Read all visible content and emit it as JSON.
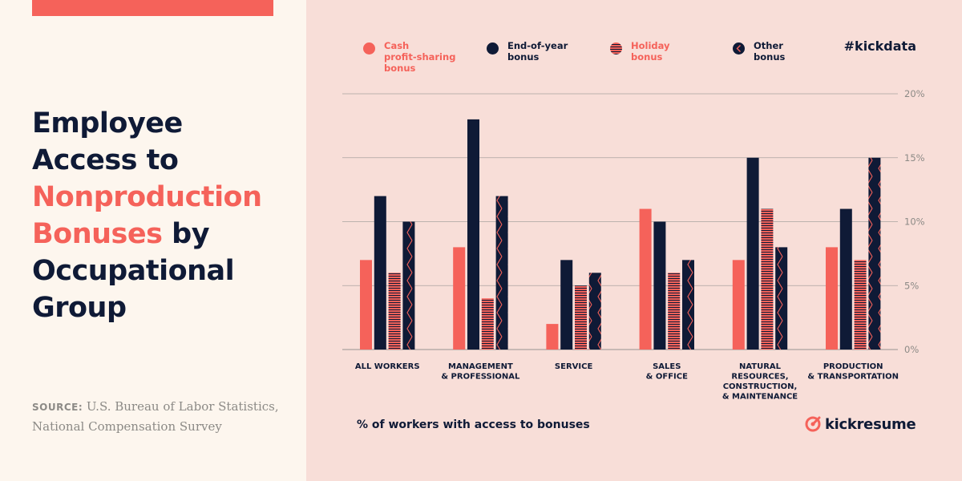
{
  "header": {
    "title_lines": [
      "Employee",
      "Access to",
      "Nonproduction",
      "Bonuses",
      "by",
      "Occupational",
      "Group"
    ],
    "hashtag": "#kickdata"
  },
  "source": {
    "label": "SOURCE:",
    "text": "U.S. Bureau of Labor Statistics, National Compensation Survey"
  },
  "brand": {
    "name": "kickresume"
  },
  "colors": {
    "coral": "#f5625a",
    "navy": "#0f1a36",
    "chart_bg": "#f8ded8",
    "panel_bg": "#fdf6ee",
    "grid": "#aaa3a0",
    "tick": "#8c8a86"
  },
  "chart_data": {
    "type": "bar",
    "title": "Employee Access to Nonproduction Bonuses by Occupational Group",
    "xlabel": "% of workers with access to bonuses",
    "ylabel": "",
    "ylim": [
      0,
      20
    ],
    "yticks": [
      0,
      5,
      10,
      15,
      20
    ],
    "ytick_labels": [
      "0%",
      "5%",
      "10%",
      "15%",
      "20%"
    ],
    "grid": true,
    "legend_position": "top",
    "categories": [
      [
        "ALL WORKERS"
      ],
      [
        "MANAGEMENT",
        "& PROFESSIONAL"
      ],
      [
        "SERVICE"
      ],
      [
        "SALES",
        "& OFFICE"
      ],
      [
        "NATURAL",
        "RESOURCES,",
        "CONSTRUCTION,",
        "& MAINTENANCE"
      ],
      [
        "PRODUCTION",
        "& TRANSPORTATION"
      ]
    ],
    "series": [
      {
        "name": "Cash profit-sharing bonus",
        "label_lines": [
          "Cash",
          "profit-sharing",
          "bonus"
        ],
        "color": "#f5625a",
        "pattern": "solid",
        "values": [
          7,
          8,
          2,
          11,
          7,
          8
        ]
      },
      {
        "name": "End-of-year bonus",
        "label_lines": [
          "End-of-year",
          "bonus"
        ],
        "color": "#0f1a36",
        "pattern": "solid",
        "values": [
          12,
          18,
          7,
          10,
          15,
          11
        ]
      },
      {
        "name": "Holiday bonus",
        "label_lines": [
          "Holiday",
          "bonus"
        ],
        "color": "#f5625a",
        "pattern": "stripes",
        "values": [
          6,
          4,
          5,
          6,
          11,
          7
        ]
      },
      {
        "name": "Other bonus",
        "label_lines": [
          "Other",
          "bonus"
        ],
        "color": "#0f1a36",
        "pattern": "zigzag",
        "values": [
          10,
          12,
          6,
          7,
          8,
          15
        ]
      }
    ]
  }
}
